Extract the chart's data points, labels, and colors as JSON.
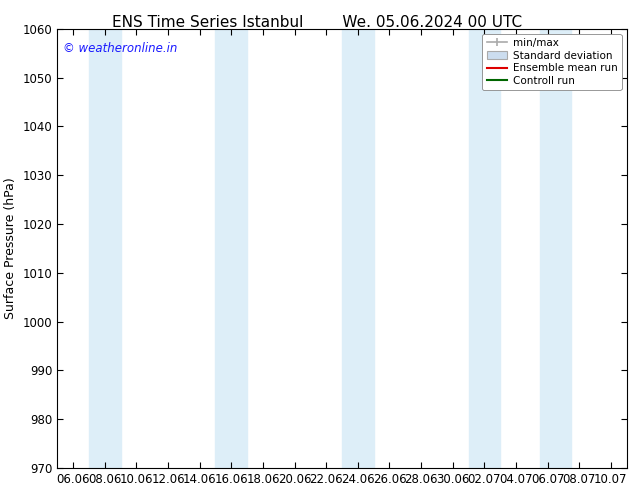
{
  "title_left": "ENS Time Series Istanbul",
  "title_right": "We. 05.06.2024 00 UTC",
  "ylabel": "Surface Pressure (hPa)",
  "ylim": [
    970,
    1060
  ],
  "yticks": [
    970,
    980,
    990,
    1000,
    1010,
    1020,
    1030,
    1040,
    1050,
    1060
  ],
  "x_labels": [
    "06.06",
    "08.06",
    "10.06",
    "12.06",
    "14.06",
    "16.06",
    "18.06",
    "20.06",
    "22.06",
    "24.06",
    "26.06",
    "28.06",
    "30.06",
    "02.07",
    "04.07",
    "06.07",
    "08.07",
    "10.07"
  ],
  "shaded_bands_left": [
    1.0,
    5.0,
    9.0,
    13.0,
    15.25
  ],
  "shaded_bands_right": [
    2.0,
    6.0,
    10.0,
    14.0,
    16.25
  ],
  "shade_color": "#ddeef8",
  "background_color": "#ffffff",
  "watermark": "© weatheronline.in",
  "watermark_color": "#1a1aff",
  "title_fontsize": 11,
  "tick_fontsize": 8.5,
  "ylabel_fontsize": 9
}
